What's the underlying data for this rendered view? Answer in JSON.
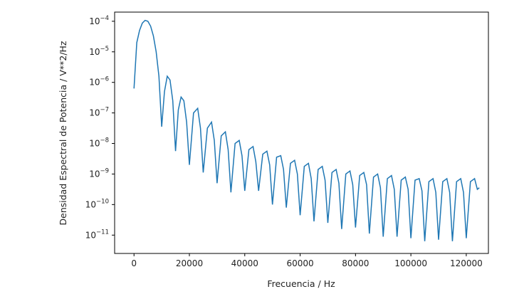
{
  "chart_data": {
    "type": "line",
    "xlabel": "Frecuencia / Hz",
    "ylabel": "Densidad Espectral de Potencia / V**2/Hz",
    "xlim": [
      -7000,
      128000
    ],
    "ylim_log10": [
      -11.6,
      -3.7
    ],
    "y_scale": "log",
    "grid": false,
    "x_ticks": [
      0,
      20000,
      40000,
      60000,
      80000,
      100000,
      120000
    ],
    "x_tick_labels": [
      "0",
      "20000",
      "40000",
      "60000",
      "80000",
      "100000",
      "120000"
    ],
    "y_tick_exponents": [
      -4,
      -5,
      -6,
      -7,
      -8,
      -9,
      -10,
      -11
    ],
    "y_tick_base": "10",
    "line_color": "#1f77b4",
    "series": [
      {
        "x": [
          0,
          1000,
          2000,
          3000,
          4000,
          5000,
          6000,
          7000,
          8000,
          9000,
          10000,
          11000,
          12000,
          13000,
          14000,
          15000,
          16000,
          17000,
          18000,
          19000,
          20000,
          21500,
          23000,
          24000,
          25000,
          26500,
          28000,
          29000,
          30000,
          31500,
          33000,
          34000,
          35000,
          36500,
          38000,
          39000,
          40000,
          41500,
          43000,
          44000,
          45000,
          46500,
          48000,
          49000,
          50000,
          51500,
          53000,
          54000,
          55000,
          56500,
          58000,
          59000,
          60000,
          61500,
          63000,
          64000,
          65000,
          66500,
          68000,
          69000,
          70000,
          71500,
          73000,
          74000,
          75000,
          76500,
          78000,
          79000,
          80000,
          81500,
          83000,
          84000,
          85000,
          86500,
          88000,
          89000,
          90000,
          91500,
          93000,
          94000,
          95000,
          96500,
          98000,
          99000,
          100000,
          101500,
          103000,
          104000,
          105000,
          106500,
          108000,
          109000,
          110000,
          111500,
          113000,
          114000,
          115000,
          116500,
          118000,
          119000,
          120000,
          121500,
          123000,
          124000,
          124700
        ],
        "y_log10": [
          -6.2,
          -4.7,
          -4.3,
          -4.06,
          -3.97,
          -4.0,
          -4.16,
          -4.48,
          -5.0,
          -5.8,
          -7.45,
          -6.3,
          -5.8,
          -5.92,
          -6.6,
          -8.25,
          -6.9,
          -6.48,
          -6.6,
          -7.3,
          -8.7,
          -7.0,
          -6.85,
          -7.5,
          -8.95,
          -7.5,
          -7.3,
          -7.9,
          -9.3,
          -7.75,
          -7.62,
          -8.2,
          -9.6,
          -8.0,
          -7.9,
          -8.4,
          -9.55,
          -8.2,
          -8.1,
          -8.6,
          -9.55,
          -8.35,
          -8.25,
          -8.7,
          -10.0,
          -8.45,
          -8.4,
          -8.85,
          -10.1,
          -8.65,
          -8.55,
          -9.0,
          -10.35,
          -8.75,
          -8.65,
          -9.15,
          -10.55,
          -8.85,
          -8.75,
          -9.2,
          -10.6,
          -8.95,
          -8.85,
          -9.3,
          -10.8,
          -9.0,
          -8.9,
          -9.35,
          -10.75,
          -9.05,
          -8.95,
          -9.35,
          -10.95,
          -9.1,
          -9.0,
          -9.45,
          -11.05,
          -9.15,
          -9.05,
          -9.5,
          -11.05,
          -9.2,
          -9.1,
          -9.5,
          -11.1,
          -9.2,
          -9.15,
          -9.55,
          -11.2,
          -9.25,
          -9.15,
          -9.6,
          -11.15,
          -9.25,
          -9.15,
          -9.6,
          -11.2,
          -9.25,
          -9.15,
          -9.6,
          -11.1,
          -9.25,
          -9.15,
          -9.5,
          -9.45
        ]
      }
    ]
  }
}
